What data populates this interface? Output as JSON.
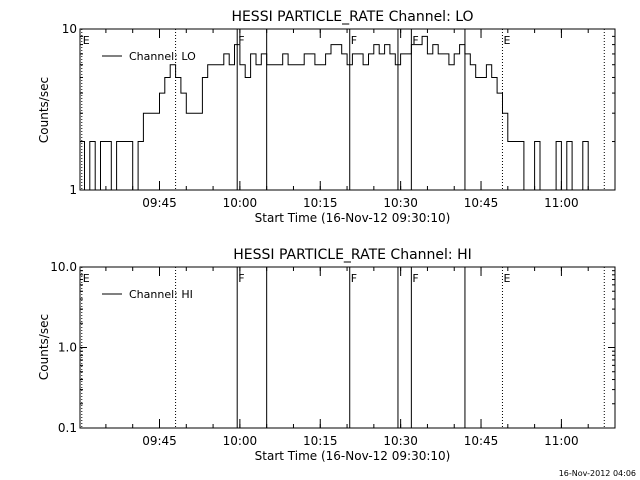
{
  "footer": {
    "timestamp": "16-Nov-2012 04:06"
  },
  "chart_data": [
    {
      "type": "line",
      "title": "HESSI PARTICLE_RATE Channel: LO",
      "xlabel": "Start Time (16-Nov-12 09:30:10)",
      "ylabel": "Counts/sec",
      "yscale": "log",
      "ylim": [
        1,
        10
      ],
      "yticks": [
        1,
        10
      ],
      "ytick_labels": [
        "1",
        "10"
      ],
      "xlim": [
        "09:30:10",
        "11:10:00"
      ],
      "xticks": [
        "09:45",
        "10:00",
        "10:15",
        "10:30",
        "10:45",
        "11:00"
      ],
      "legend": {
        "position": "top-left",
        "entries": [
          "Channel: LO"
        ]
      },
      "series": [
        {
          "name": "Channel: LO",
          "x": [
            "09:30:10",
            "09:31:00",
            "09:32:00",
            "09:33:00",
            "09:34:00",
            "09:35:00",
            "09:36:00",
            "09:37:00",
            "09:38:00",
            "09:39:00",
            "09:40:00",
            "09:41:00",
            "09:42:00",
            "09:43:00",
            "09:44:00",
            "09:45:00",
            "09:46:00",
            "09:47:00",
            "09:48:00",
            "09:49:00",
            "09:50:00",
            "09:51:00",
            "09:52:00",
            "09:53:00",
            "09:54:00",
            "09:55:00",
            "09:56:00",
            "09:57:00",
            "09:58:00",
            "09:59:00",
            "10:00:00",
            "10:01:00",
            "10:02:00",
            "10:03:00",
            "10:04:00",
            "10:05:00",
            "10:06:00",
            "10:07:00",
            "10:08:00",
            "10:09:00",
            "10:10:00",
            "10:11:00",
            "10:12:00",
            "10:13:00",
            "10:14:00",
            "10:15:00",
            "10:16:00",
            "10:17:00",
            "10:18:00",
            "10:19:00",
            "10:20:00",
            "10:21:00",
            "10:22:00",
            "10:23:00",
            "10:24:00",
            "10:25:00",
            "10:26:00",
            "10:27:00",
            "10:28:00",
            "10:29:00",
            "10:30:00",
            "10:31:00",
            "10:32:00",
            "10:33:00",
            "10:34:00",
            "10:35:00",
            "10:36:00",
            "10:37:00",
            "10:38:00",
            "10:39:00",
            "10:40:00",
            "10:41:00",
            "10:42:00",
            "10:43:00",
            "10:44:00",
            "10:45:00",
            "10:46:00",
            "10:47:00",
            "10:48:00",
            "10:49:00",
            "10:50:00",
            "10:51:00",
            "10:52:00",
            "10:53:00",
            "10:54:00",
            "10:55:00",
            "10:56:00",
            "10:57:00",
            "10:58:00",
            "10:59:00",
            "11:00:00",
            "11:01:00",
            "11:02:00",
            "11:03:00",
            "11:04:00",
            "11:05:00",
            "11:06:00"
          ],
          "y": [
            2,
            1,
            2,
            1,
            2,
            2,
            1,
            2,
            2,
            2,
            1,
            2,
            3,
            3,
            3,
            4,
            5,
            6,
            5,
            4,
            3,
            3,
            3,
            5,
            6,
            6,
            6,
            7,
            6,
            8,
            6,
            5,
            7,
            6,
            7,
            6,
            6,
            6,
            7,
            6,
            6,
            6,
            7,
            7,
            6,
            6,
            7,
            8,
            8,
            7,
            6,
            7,
            7,
            6,
            7,
            8,
            7,
            8,
            7,
            6,
            7,
            7,
            8,
            8,
            9,
            7,
            8,
            7,
            7,
            6,
            7,
            8,
            7,
            6,
            5,
            5,
            6,
            5,
            4,
            3,
            2,
            2,
            2,
            1,
            1,
            2,
            1,
            1,
            1,
            2,
            1,
            2,
            1,
            1,
            2,
            1,
            1
          ]
        }
      ],
      "markers": [
        {
          "time": "09:30:30",
          "label": "E",
          "style": "dotted"
        },
        {
          "time": "09:48:00",
          "label": "",
          "style": "dotted"
        },
        {
          "time": "09:59:30",
          "label": "F",
          "style": "solid"
        },
        {
          "time": "10:05:00",
          "label": "",
          "style": "solid"
        },
        {
          "time": "10:20:30",
          "label": "F",
          "style": "solid"
        },
        {
          "time": "10:29:30",
          "label": "",
          "style": "solid"
        },
        {
          "time": "10:32:00",
          "label": "F",
          "style": "solid"
        },
        {
          "time": "10:42:00",
          "label": "",
          "style": "solid"
        },
        {
          "time": "10:49:00",
          "label": "E",
          "style": "dotted"
        },
        {
          "time": "11:08:00",
          "label": "",
          "style": "dotted"
        }
      ]
    },
    {
      "type": "line",
      "title": "HESSI PARTICLE_RATE Channel: HI",
      "xlabel": "Start Time (16-Nov-12 09:30:10)",
      "ylabel": "Counts/sec",
      "yscale": "log",
      "ylim": [
        0.1,
        10
      ],
      "yticks": [
        0.1,
        1,
        10
      ],
      "ytick_labels": [
        "0.1",
        "1.0",
        "10.0"
      ],
      "xlim": [
        "09:30:10",
        "11:10:00"
      ],
      "xticks": [
        "09:45",
        "10:00",
        "10:15",
        "10:30",
        "10:45",
        "11:00"
      ],
      "legend": {
        "position": "top-left",
        "entries": [
          "Channel: HI"
        ]
      },
      "series": [
        {
          "name": "Channel: HI",
          "x": [],
          "y": []
        }
      ],
      "markers": [
        {
          "time": "09:30:30",
          "label": "E",
          "style": "dotted"
        },
        {
          "time": "09:48:00",
          "label": "",
          "style": "dotted"
        },
        {
          "time": "09:59:30",
          "label": "F",
          "style": "solid"
        },
        {
          "time": "10:05:00",
          "label": "",
          "style": "solid"
        },
        {
          "time": "10:20:30",
          "label": "F",
          "style": "solid"
        },
        {
          "time": "10:29:30",
          "label": "",
          "style": "solid"
        },
        {
          "time": "10:32:00",
          "label": "F",
          "style": "solid"
        },
        {
          "time": "10:42:00",
          "label": "",
          "style": "solid"
        },
        {
          "time": "10:49:00",
          "label": "E",
          "style": "dotted"
        },
        {
          "time": "11:08:00",
          "label": "",
          "style": "dotted"
        }
      ]
    }
  ]
}
